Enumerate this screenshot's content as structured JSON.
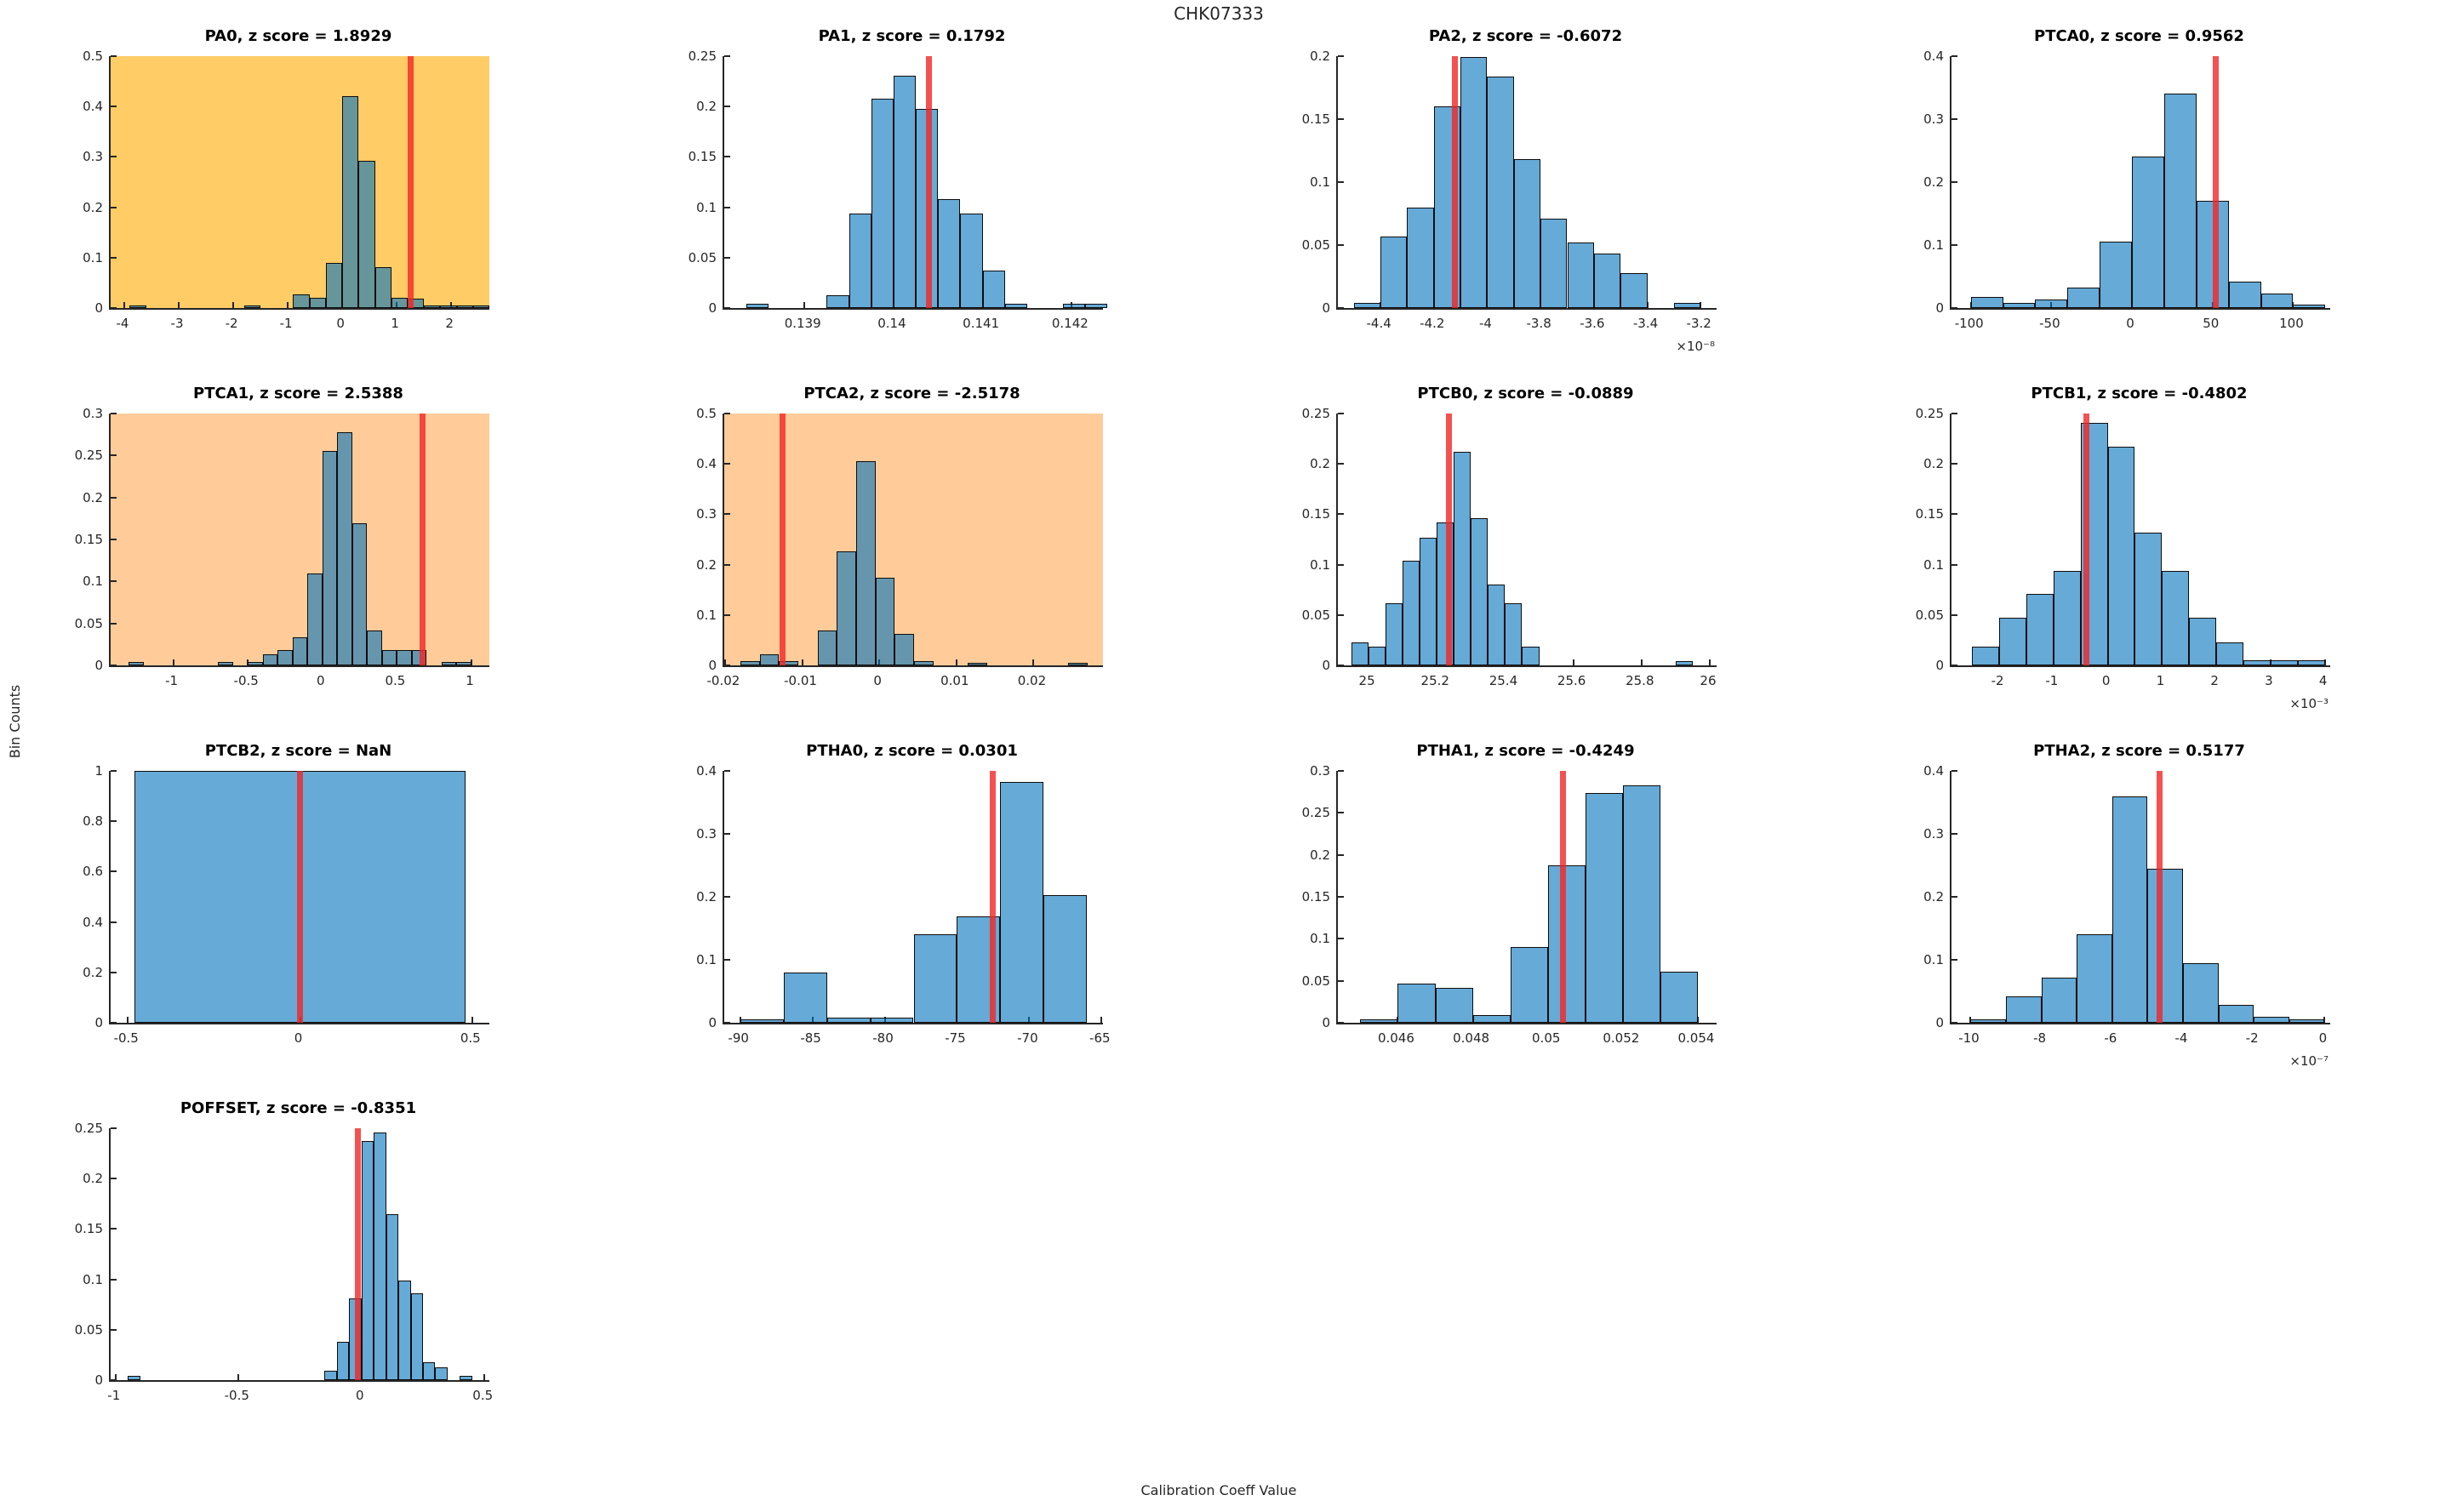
{
  "figure": {
    "title": "CHK07333",
    "xlabel": "Calibration Coeff Value",
    "ylabel": "Bin Counts",
    "colors": {
      "bar_fill": "rgba(0,114,189,0.6)",
      "bar_edge": "#0d0d0d",
      "ref_line": "rgba(242,38,38,0.8)",
      "axis": "#262626",
      "highlight_strong_bg": "#FFCC66",
      "highlight_light_bg": "#FFCC99",
      "plot_bg": "#FFFFFF"
    }
  },
  "chart_data": [
    {
      "type": "histogram",
      "name": "PA0",
      "title": "PA0, z score = 1.8929",
      "z_score": "1.8929",
      "row": 0,
      "col": 0,
      "bg": "#FFCC66",
      "xlim": [
        -4.25,
        2.7
      ],
      "ylim": [
        0,
        0.5
      ],
      "xtick_vals": [
        -4,
        -3,
        -2,
        -1,
        0,
        1,
        2
      ],
      "xtick_labels": [
        "-4",
        "-3",
        "-2",
        "-1",
        "0",
        "1",
        "2"
      ],
      "ytick_vals": [
        0,
        0.1,
        0.2,
        0.3,
        0.4,
        0.5
      ],
      "ytick_labels": [
        "0",
        "0.1",
        "0.2",
        "0.3",
        "0.4",
        "0.5"
      ],
      "bin_width": 0.3,
      "bins": [
        [
          -3.9,
          0.005
        ],
        [
          -1.8,
          0.005
        ],
        [
          -0.9,
          0.027
        ],
        [
          -0.6,
          0.021
        ],
        [
          -0.3,
          0.09
        ],
        [
          0,
          0.42
        ],
        [
          0.3,
          0.292
        ],
        [
          0.6,
          0.081
        ],
        [
          0.9,
          0.021
        ],
        [
          1.2,
          0.018
        ],
        [
          1.5,
          0.005
        ],
        [
          1.8,
          0.005
        ],
        [
          2.1,
          0.005
        ],
        [
          2.4,
          0.005
        ]
      ],
      "ref_x": 1.25,
      "exponent": null
    },
    {
      "type": "histogram",
      "name": "PA1",
      "title": "PA1, z score = 0.1792",
      "z_score": "0.1792",
      "row": 0,
      "col": 1,
      "bg": "#FFFFFF",
      "xlim": [
        0.1381,
        0.14235
      ],
      "ylim": [
        0,
        0.25
      ],
      "xtick_vals": [
        0.139,
        0.14,
        0.141,
        0.142
      ],
      "xtick_labels": [
        "0.139",
        "0.14",
        "0.141",
        "0.142"
      ],
      "ytick_vals": [
        0,
        0.05,
        0.1,
        0.15,
        0.2,
        0.25
      ],
      "ytick_labels": [
        "0",
        "0.05",
        "0.1",
        "0.15",
        "0.2",
        "0.25"
      ],
      "bin_width": 0.00025,
      "bins": [
        [
          0.13835,
          0.004
        ],
        [
          0.13925,
          0.013
        ],
        [
          0.1395,
          0.094
        ],
        [
          0.13975,
          0.208
        ],
        [
          0.14,
          0.231
        ],
        [
          0.14025,
          0.198
        ],
        [
          0.1405,
          0.108
        ],
        [
          0.14075,
          0.094
        ],
        [
          0.141,
          0.037
        ],
        [
          0.14125,
          0.004
        ],
        [
          0.1419,
          0.004
        ],
        [
          0.14215,
          0.004
        ]
      ],
      "ref_x": 0.1404,
      "exponent": null
    },
    {
      "type": "histogram",
      "name": "PA2",
      "title": "PA2, z score = -0.6072",
      "z_score": "-0.6072",
      "row": 0,
      "col": 2,
      "bg": "#FFFFFF",
      "xlim": [
        -4.56,
        -3.14
      ],
      "ylim": [
        0,
        0.2
      ],
      "xtick_vals": [
        -4.4,
        -4.2,
        -4,
        -3.8,
        -3.6,
        -3.4,
        -3.2
      ],
      "xtick_labels": [
        "-4.4",
        "-4.2",
        "-4",
        "-3.8",
        "-3.6",
        "-3.4",
        "-3.2"
      ],
      "ytick_vals": [
        0,
        0.05,
        0.1,
        0.15,
        0.2
      ],
      "ytick_labels": [
        "0",
        "0.05",
        "0.1",
        "0.15",
        "0.2"
      ],
      "bin_width": 0.1,
      "bins": [
        [
          -4.5,
          0.004
        ],
        [
          -4.4,
          0.057
        ],
        [
          -4.3,
          0.08
        ],
        [
          -4.2,
          0.16
        ],
        [
          -4.1,
          0.199
        ],
        [
          -4.0,
          0.184
        ],
        [
          -3.9,
          0.118
        ],
        [
          -3.8,
          0.071
        ],
        [
          -3.7,
          0.052
        ],
        [
          -3.6,
          0.043
        ],
        [
          -3.5,
          0.028
        ],
        [
          -3.3,
          0.004
        ]
      ],
      "ref_x": -4.12,
      "exponent": "×10⁻⁸"
    },
    {
      "type": "histogram",
      "name": "PTCA0",
      "title": "PTCA0, z score = 0.9562",
      "z_score": "0.9562",
      "row": 0,
      "col": 3,
      "bg": "#FFFFFF",
      "xlim": [
        -112,
        123
      ],
      "ylim": [
        0,
        0.4
      ],
      "xtick_vals": [
        -100,
        -50,
        0,
        50,
        100
      ],
      "xtick_labels": [
        "-100",
        "-50",
        "0",
        "50",
        "100"
      ],
      "ytick_vals": [
        0,
        0.1,
        0.2,
        0.3,
        0.4
      ],
      "ytick_labels": [
        "0",
        "0.1",
        "0.2",
        "0.3",
        "0.4"
      ],
      "bin_width": 20,
      "bins": [
        [
          -100,
          0.018
        ],
        [
          -80,
          0.008
        ],
        [
          -60,
          0.013
        ],
        [
          -40,
          0.033
        ],
        [
          -20,
          0.105
        ],
        [
          0,
          0.24
        ],
        [
          20,
          0.34
        ],
        [
          40,
          0.17
        ],
        [
          60,
          0.042
        ],
        [
          80,
          0.023
        ],
        [
          100,
          0.005
        ]
      ],
      "ref_x": 52,
      "exponent": null
    },
    {
      "type": "histogram",
      "name": "PTCA1",
      "title": "PTCA1, z score = 2.5388",
      "z_score": "2.5388",
      "row": 1,
      "col": 0,
      "bg": "#FFCC99",
      "xlim": [
        -1.42,
        1.12
      ],
      "ylim": [
        0,
        0.3
      ],
      "xtick_vals": [
        -1,
        -0.5,
        0,
        0.5,
        1
      ],
      "xtick_labels": [
        "-1",
        "-0.5",
        "0",
        "0.5",
        "1"
      ],
      "ytick_vals": [
        0,
        0.05,
        0.1,
        0.15,
        0.2,
        0.25,
        0.3
      ],
      "ytick_labels": [
        "0",
        "0.05",
        "0.1",
        "0.15",
        "0.2",
        "0.25",
        "0.3"
      ],
      "bin_width": 0.1,
      "bins": [
        [
          -1.3,
          0.004
        ],
        [
          -0.7,
          0.004
        ],
        [
          -0.5,
          0.004
        ],
        [
          -0.4,
          0.013
        ],
        [
          -0.3,
          0.018
        ],
        [
          -0.2,
          0.033
        ],
        [
          -0.1,
          0.109
        ],
        [
          0,
          0.255
        ],
        [
          0.1,
          0.278
        ],
        [
          0.2,
          0.169
        ],
        [
          0.3,
          0.042
        ],
        [
          0.4,
          0.018
        ],
        [
          0.5,
          0.018
        ],
        [
          0.6,
          0.018
        ],
        [
          0.8,
          0.004
        ],
        [
          0.9,
          0.004
        ]
      ],
      "ref_x": 0.67,
      "exponent": null
    },
    {
      "type": "histogram",
      "name": "PTCA2",
      "title": "PTCA2, z score = -2.5178",
      "z_score": "-2.5178",
      "row": 1,
      "col": 1,
      "bg": "#FFCC99",
      "xlim": [
        -0.0201,
        0.029
      ],
      "ylim": [
        0,
        0.5
      ],
      "xtick_vals": [
        -0.02,
        -0.01,
        0,
        0.01,
        0.02
      ],
      "xtick_labels": [
        "-0.02",
        "-0.01",
        "0",
        "0.01",
        "0.02"
      ],
      "ytick_vals": [
        0,
        0.1,
        0.2,
        0.3,
        0.4,
        0.5
      ],
      "ytick_labels": [
        "0",
        "0.1",
        "0.2",
        "0.3",
        "0.4",
        "0.5"
      ],
      "bin_width": 0.0025,
      "bins": [
        [
          -0.018,
          0.008
        ],
        [
          -0.0155,
          0.022
        ],
        [
          -0.013,
          0.008
        ],
        [
          -0.008,
          0.07
        ],
        [
          -0.0055,
          0.227
        ],
        [
          -0.003,
          0.405
        ],
        [
          -0.0005,
          0.174
        ],
        [
          0.002,
          0.063
        ],
        [
          0.0045,
          0.008
        ],
        [
          0.0115,
          0.005
        ],
        [
          0.0245,
          0.005
        ]
      ],
      "ref_x": -0.0125,
      "exponent": null
    },
    {
      "type": "histogram",
      "name": "PTCB0",
      "title": "PTCB0, z score = -0.0889",
      "z_score": "-0.0889",
      "row": 1,
      "col": 2,
      "bg": "#FFFFFF",
      "xlim": [
        24.91,
        26.02
      ],
      "ylim": [
        0,
        0.25
      ],
      "xtick_vals": [
        25,
        25.2,
        25.4,
        25.6,
        25.8,
        26
      ],
      "xtick_labels": [
        "25",
        "25.2",
        "25.4",
        "25.6",
        "25.8",
        "26"
      ],
      "ytick_vals": [
        0,
        0.05,
        0.1,
        0.15,
        0.2,
        0.25
      ],
      "ytick_labels": [
        "0",
        "0.05",
        "0.1",
        "0.15",
        "0.2",
        "0.25"
      ],
      "bin_width": 0.05,
      "bins": [
        [
          24.95,
          0.023
        ],
        [
          25.0,
          0.019
        ],
        [
          25.05,
          0.062
        ],
        [
          25.1,
          0.104
        ],
        [
          25.15,
          0.127
        ],
        [
          25.2,
          0.142
        ],
        [
          25.25,
          0.212
        ],
        [
          25.3,
          0.146
        ],
        [
          25.35,
          0.08
        ],
        [
          25.4,
          0.062
        ],
        [
          25.45,
          0.019
        ],
        [
          25.9,
          0.004
        ]
      ],
      "ref_x": 25.235,
      "exponent": null
    },
    {
      "type": "histogram",
      "name": "PTCB1",
      "title": "PTCB1, z score = -0.4802",
      "z_score": "-0.4802",
      "row": 1,
      "col": 3,
      "bg": "#FFFFFF",
      "xlim": [
        -2.88,
        4.1
      ],
      "ylim": [
        0,
        0.25
      ],
      "xtick_vals": [
        -2,
        -1,
        0,
        1,
        2,
        3,
        4
      ],
      "xtick_labels": [
        "-2",
        "-1",
        "0",
        "1",
        "2",
        "3",
        "4"
      ],
      "ytick_vals": [
        0,
        0.05,
        0.1,
        0.15,
        0.2,
        0.25
      ],
      "ytick_labels": [
        "0",
        "0.05",
        "0.1",
        "0.15",
        "0.2",
        "0.25"
      ],
      "bin_width": 0.5,
      "bins": [
        [
          -2.5,
          0.019
        ],
        [
          -2,
          0.047
        ],
        [
          -1.5,
          0.071
        ],
        [
          -1,
          0.094
        ],
        [
          -0.5,
          0.241
        ],
        [
          0,
          0.217
        ],
        [
          0.5,
          0.132
        ],
        [
          1,
          0.094
        ],
        [
          1.5,
          0.047
        ],
        [
          2,
          0.023
        ],
        [
          2.5,
          0.005
        ],
        [
          3,
          0.005
        ],
        [
          3.5,
          0.005
        ]
      ],
      "ref_x": -0.4,
      "exponent": "×10⁻³"
    },
    {
      "type": "histogram",
      "name": "PTCB2",
      "title": "PTCB2, z score = NaN",
      "z_score": "NaN",
      "row": 2,
      "col": 0,
      "bg": "#FFFFFF",
      "xlim": [
        -0.55,
        0.55
      ],
      "ylim": [
        0,
        1
      ],
      "xtick_vals": [
        -0.5,
        0,
        0.5
      ],
      "xtick_labels": [
        "-0.5",
        "0",
        "0.5"
      ],
      "ytick_vals": [
        0,
        0.2,
        0.4,
        0.6,
        0.8,
        1
      ],
      "ytick_labels": [
        "0",
        "0.2",
        "0.4",
        "0.6",
        "0.8",
        "1"
      ],
      "bin_width": 0.96,
      "bins": [
        [
          -0.48,
          1.0
        ]
      ],
      "ref_x": 0,
      "exponent": null
    },
    {
      "type": "histogram",
      "name": "PTHA0",
      "title": "PTHA0, z score = 0.0301",
      "z_score": "0.0301",
      "row": 2,
      "col": 1,
      "bg": "#FFFFFF",
      "xlim": [
        -91.1,
        -64.9
      ],
      "ylim": [
        0,
        0.4
      ],
      "xtick_vals": [
        -90,
        -85,
        -80,
        -75,
        -70,
        -65
      ],
      "xtick_labels": [
        "-90",
        "-85",
        "-80",
        "-75",
        "-70",
        "-65"
      ],
      "ytick_vals": [
        0,
        0.1,
        0.2,
        0.3,
        0.4
      ],
      "ytick_labels": [
        "0",
        "0.1",
        "0.2",
        "0.3",
        "0.4"
      ],
      "bin_width": 3,
      "bins": [
        [
          -90,
          0.005
        ],
        [
          -87,
          0.08
        ],
        [
          -84,
          0.008
        ],
        [
          -81,
          0.008
        ],
        [
          -78,
          0.141
        ],
        [
          -75,
          0.169
        ],
        [
          -72,
          0.383
        ],
        [
          -69,
          0.203
        ]
      ],
      "ref_x": -72.5,
      "exponent": null
    },
    {
      "type": "histogram",
      "name": "PTHA1",
      "title": "PTHA1, z score = -0.4249",
      "z_score": "-0.4249",
      "row": 2,
      "col": 2,
      "bg": "#FFFFFF",
      "xlim": [
        0.0444,
        0.0545
      ],
      "ylim": [
        0,
        0.3
      ],
      "xtick_vals": [
        0.046,
        0.048,
        0.05,
        0.052,
        0.054
      ],
      "xtick_labels": [
        "0.046",
        "0.048",
        "0.05",
        "0.052",
        "0.054"
      ],
      "ytick_vals": [
        0,
        0.05,
        0.1,
        0.15,
        0.2,
        0.25,
        0.3
      ],
      "ytick_labels": [
        "0",
        "0.05",
        "0.1",
        "0.15",
        "0.2",
        "0.25",
        "0.3"
      ],
      "bin_width": 0.001,
      "bins": [
        [
          0.045,
          0.004
        ],
        [
          0.046,
          0.047
        ],
        [
          0.047,
          0.042
        ],
        [
          0.048,
          0.009
        ],
        [
          0.049,
          0.09
        ],
        [
          0.05,
          0.188
        ],
        [
          0.051,
          0.274
        ],
        [
          0.052,
          0.283
        ],
        [
          0.053,
          0.061
        ]
      ],
      "ref_x": 0.0504,
      "exponent": null
    },
    {
      "type": "histogram",
      "name": "PTHA2",
      "title": "PTHA2, z score = 0.5177",
      "z_score": "0.5177",
      "row": 2,
      "col": 3,
      "bg": "#FFFFFF",
      "xlim": [
        -10.54,
        0.16
      ],
      "ylim": [
        0,
        0.4
      ],
      "xtick_vals": [
        -10,
        -8,
        -6,
        -4,
        -2,
        0
      ],
      "xtick_labels": [
        "-10",
        "-8",
        "-6",
        "-4",
        "-2",
        "0"
      ],
      "ytick_vals": [
        0,
        0.1,
        0.2,
        0.3,
        0.4
      ],
      "ytick_labels": [
        "0",
        "0.1",
        "0.2",
        "0.3",
        "0.4"
      ],
      "bin_width": 1,
      "bins": [
        [
          -10,
          0.005
        ],
        [
          -9,
          0.042
        ],
        [
          -8,
          0.071
        ],
        [
          -7,
          0.141
        ],
        [
          -6,
          0.36
        ],
        [
          -5,
          0.245
        ],
        [
          -4,
          0.095
        ],
        [
          -3,
          0.028
        ],
        [
          -2,
          0.009
        ],
        [
          -1,
          0.005
        ]
      ],
      "ref_x": -4.65,
      "exponent": "×10⁻⁷"
    },
    {
      "type": "histogram",
      "name": "POFFSET",
      "title": "POFFSET, z score = -0.8351",
      "z_score": "-0.8351",
      "row": 3,
      "col": 0,
      "bg": "#FFFFFF",
      "xlim": [
        -1.02,
        0.52
      ],
      "ylim": [
        0,
        0.25
      ],
      "xtick_vals": [
        -1,
        -0.5,
        0,
        0.5
      ],
      "xtick_labels": [
        "-1",
        "-0.5",
        "0",
        "0.5"
      ],
      "ytick_vals": [
        0,
        0.05,
        0.1,
        0.15,
        0.2,
        0.25
      ],
      "ytick_labels": [
        "0",
        "0.05",
        "0.1",
        "0.15",
        "0.2",
        "0.25"
      ],
      "bin_width": 0.05,
      "bins": [
        [
          -0.95,
          0.004
        ],
        [
          -0.15,
          0.009
        ],
        [
          -0.1,
          0.038
        ],
        [
          -0.05,
          0.081
        ],
        [
          0,
          0.237
        ],
        [
          0.05,
          0.246
        ],
        [
          0.1,
          0.165
        ],
        [
          0.15,
          0.099
        ],
        [
          0.2,
          0.086
        ],
        [
          0.25,
          0.018
        ],
        [
          0.3,
          0.013
        ],
        [
          0.4,
          0.004
        ]
      ],
      "ref_x": -0.015,
      "exponent": null
    }
  ]
}
